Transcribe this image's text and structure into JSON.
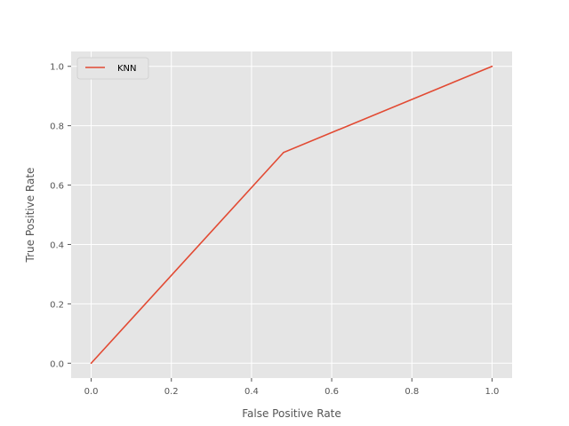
{
  "chart_data": {
    "type": "line",
    "title": "",
    "xlabel": "False Positive Rate",
    "ylabel": "True Positive Rate",
    "xlim": [
      -0.05,
      1.05
    ],
    "ylim": [
      -0.05,
      1.05
    ],
    "xticks": [
      0.0,
      0.2,
      0.4,
      0.6,
      0.8,
      1.0
    ],
    "yticks": [
      0.0,
      0.2,
      0.4,
      0.6,
      0.8,
      1.0
    ],
    "xtick_labels": [
      "0.0",
      "0.2",
      "0.4",
      "0.6",
      "0.8",
      "1.0"
    ],
    "ytick_labels": [
      "0.0",
      "0.2",
      "0.4",
      "0.6",
      "0.8",
      "1.0"
    ],
    "grid": true,
    "legend_position": "top-left",
    "series": [
      {
        "name": "KNN",
        "color": "#E24A33",
        "x": [
          0.0,
          0.48,
          1.0
        ],
        "y": [
          0.0,
          0.71,
          1.0
        ]
      }
    ],
    "background_color": "#E5E5E5",
    "grid_color": "#FFFFFF"
  }
}
